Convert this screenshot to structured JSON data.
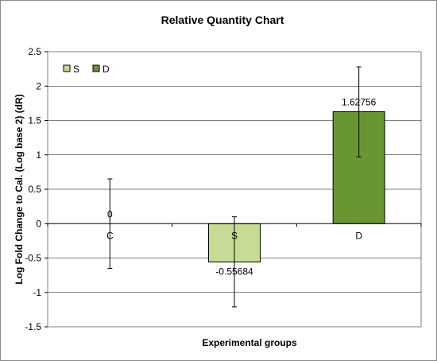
{
  "chart_data": {
    "type": "bar",
    "title": "Relative Quantity Chart",
    "xlabel": "Experimental groups",
    "ylabel": "Log Fold Change to Cal. (Log base 2) (dR)",
    "ylim": [
      -1.5,
      2.5
    ],
    "yticks": [
      2.5,
      2,
      1.5,
      1,
      0.5,
      0,
      -0.5,
      -1,
      -1.5
    ],
    "ytick_labels": [
      "2.5",
      "2",
      "1.5",
      "1",
      "0.5",
      "0",
      "-0.5",
      "-1",
      "-1.5"
    ],
    "grid": true,
    "legend_position": "top-left",
    "categories": [
      "C",
      "S",
      "D"
    ],
    "values": [
      0,
      -0.55684,
      1.62756
    ],
    "data_labels": [
      "0",
      "-0.55684",
      "1.62756"
    ],
    "error_low": [
      -0.65,
      -1.21,
      0.97
    ],
    "error_high": [
      0.65,
      0.1,
      2.28
    ],
    "colors": [
      "#c6dc94",
      "#c6dc94",
      "#6a9632"
    ],
    "legend": [
      {
        "name": "S",
        "color": "#c6dc94"
      },
      {
        "name": "D",
        "color": "#6a9632"
      }
    ]
  }
}
